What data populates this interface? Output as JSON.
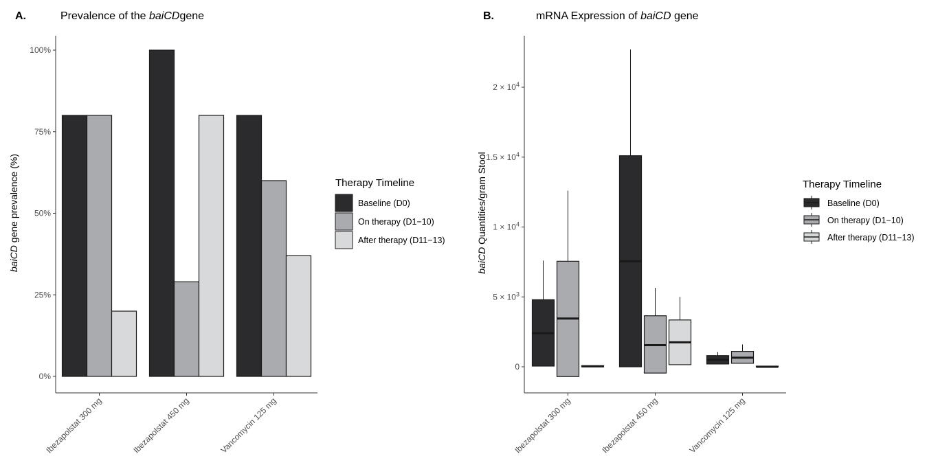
{
  "chart_data": [
    {
      "type": "bar",
      "panel_label": "A.",
      "title": {
        "prefix": "Prevalence of the ",
        "italic": "baiCD",
        "suffix": "gene"
      },
      "ylabel": {
        "italic": "baiCD",
        "suffix": " gene prevalence (%)"
      },
      "xlabel": "",
      "categories": [
        "Ibezapolstat 300 mg",
        "Ibezapolstat 450 mg",
        "Vancomycin 125 mg"
      ],
      "series": [
        {
          "name": "Baseline (D0)",
          "values": [
            80,
            100,
            80
          ]
        },
        {
          "name": "On therapy (D1−10)",
          "values": [
            80,
            29,
            60
          ]
        },
        {
          "name": "After therapy (D11−13)",
          "values": [
            20,
            80,
            37
          ]
        }
      ],
      "ylim": [
        0,
        100
      ],
      "yticks": [
        0,
        25,
        50,
        75,
        100
      ],
      "ytick_labels": [
        "0%",
        "25%",
        "50%",
        "75%",
        "100%"
      ],
      "legend": {
        "title": "Therapy Timeline",
        "position": "right",
        "entries": [
          "Baseline (D0)",
          "On therapy (D1−10)",
          "After therapy (D11−13)"
        ]
      },
      "grid": false
    },
    {
      "type": "box",
      "panel_label": "B.",
      "title": {
        "prefix": "mRNA Expression of ",
        "italic": "baiCD",
        "suffix": " gene"
      },
      "ylabel": {
        "italic": "baiCD",
        "suffix": " Quantities/gram Stool"
      },
      "xlabel": "",
      "categories": [
        "Ibezapolstat 300 mg",
        "Ibezapolstat 450 mg",
        "Vancomycin 125 mg"
      ],
      "series": [
        {
          "name": "Baseline (D0)",
          "boxes": [
            {
              "min": 50,
              "q1": 50,
              "median": 2400,
              "q3": 4800,
              "max": 7600
            },
            {
              "min": 0,
              "q1": 0,
              "median": 7550,
              "q3": 15100,
              "max": 22700
            },
            {
              "min": 200,
              "q1": 200,
              "median": 500,
              "q3": 800,
              "max": 1050
            }
          ]
        },
        {
          "name": "On therapy (D1−10)",
          "boxes": [
            {
              "min": -700,
              "q1": -700,
              "median": 3450,
              "q3": 7550,
              "max": 12600
            },
            {
              "min": -450,
              "q1": -450,
              "median": 1550,
              "q3": 3650,
              "max": 5650
            },
            {
              "min": 250,
              "q1": 250,
              "median": 650,
              "q3": 1100,
              "max": 1600
            }
          ]
        },
        {
          "name": "After therapy (D11−13)",
          "boxes": [
            {
              "min": 0,
              "q1": 0,
              "median": 30,
              "q3": 80,
              "max": 80
            },
            {
              "min": 150,
              "q1": 150,
              "median": 1750,
              "q3": 3350,
              "max": 5000
            },
            {
              "min": 0,
              "q1": 0,
              "median": 0,
              "q3": 50,
              "max": 50
            }
          ]
        }
      ],
      "ylim": [
        -1800,
        23800
      ],
      "yticks": [
        0,
        5000,
        10000,
        15000,
        20000
      ],
      "ytick_labels": [
        {
          "mant": "0",
          "exp": ""
        },
        {
          "mant": "5 × 10",
          "exp": "3"
        },
        {
          "mant": "1 × 10",
          "exp": "4"
        },
        {
          "mant": "1.5 × 10",
          "exp": "4"
        },
        {
          "mant": "2 × 10",
          "exp": "4"
        }
      ],
      "legend": {
        "title": "Therapy Timeline",
        "position": "right",
        "entries": [
          "Baseline (D0)",
          "On therapy (D1−10)",
          "After therapy (D11−13)"
        ]
      },
      "grid": false
    }
  ],
  "colors": {
    "baseline": "#2b2a2c",
    "on_therapy": "#aaabae",
    "after_therapy": "#d8d9db",
    "outline": "#1a1a1a",
    "axis": "#333333"
  }
}
